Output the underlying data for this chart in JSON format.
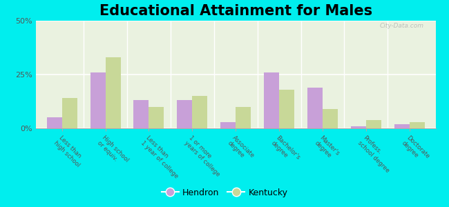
{
  "title": "Educational Attainment for Males",
  "categories": [
    "Less than\nhigh school",
    "High school\nor equiv.",
    "Less than\n1 year of college",
    "1 or more\nyears of college",
    "Associate\ndegree",
    "Bachelor's\ndegree",
    "Master's\ndegree",
    "Profess.\nschool degree",
    "Doctorate\ndegree"
  ],
  "hendron": [
    5,
    26,
    13,
    13,
    3,
    26,
    19,
    1,
    2
  ],
  "kentucky": [
    14,
    33,
    10,
    15,
    10,
    18,
    9,
    4,
    3
  ],
  "hendron_color": "#c8a0d8",
  "kentucky_color": "#c8d898",
  "background_color": "#00eeee",
  "plot_bg_color": "#eaf2e0",
  "ylim": [
    0,
    50
  ],
  "yticks": [
    0,
    25,
    50
  ],
  "ytick_labels": [
    "0%",
    "25%",
    "50%"
  ],
  "title_fontsize": 15,
  "legend_labels": [
    "Hendron",
    "Kentucky"
  ],
  "watermark": "City-Data.com"
}
